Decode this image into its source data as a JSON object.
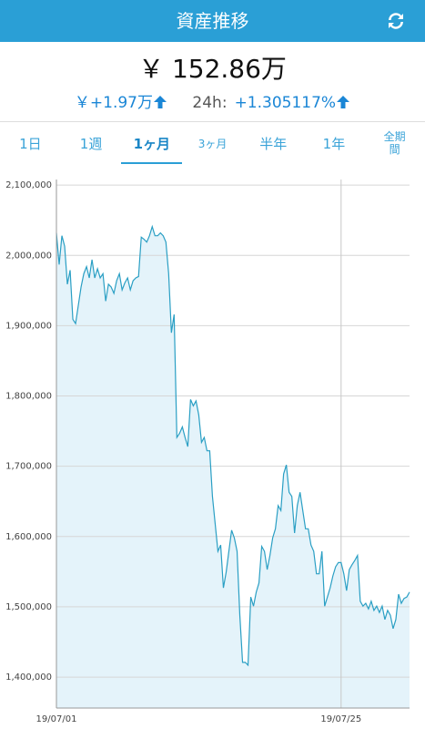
{
  "header": {
    "title": "資産推移"
  },
  "summary": {
    "total": "￥ 152.86万",
    "change": "￥+1.97万",
    "period_label": "24h:",
    "period_change": "+1.305117%"
  },
  "tabs": [
    "1日",
    "1週",
    "1ヶ月",
    "3ヶ月",
    "半年",
    "1年",
    "全期間"
  ],
  "active_tab": 2,
  "chart_data": {
    "type": "area",
    "color": "#2a9fc4",
    "fill": "#e4f3fa",
    "grid": true,
    "ylim": [
      1356000,
      2108000
    ],
    "yticks": [
      {
        "value": 1400000,
        "label": "1,400,000"
      },
      {
        "value": 1500000,
        "label": "1,500,000"
      },
      {
        "value": 1600000,
        "label": "1,600,000"
      },
      {
        "value": 1700000,
        "label": "1,700,000"
      },
      {
        "value": 1800000,
        "label": "1,800,000"
      },
      {
        "value": 1900000,
        "label": "1,900,000"
      },
      {
        "value": 2000000,
        "label": "2,000,000"
      },
      {
        "value": 2100000,
        "label": "2,100,000"
      }
    ],
    "categories": [
      "19/07/01",
      null,
      null,
      null,
      null,
      null,
      null,
      null,
      null,
      null,
      null,
      null,
      null,
      null,
      null,
      null,
      null,
      null,
      null,
      null,
      null,
      null,
      null,
      null,
      null,
      null,
      null,
      null,
      null,
      null,
      null,
      null,
      null,
      null,
      null,
      null,
      null,
      null,
      null,
      null,
      null,
      null,
      null,
      null,
      null,
      null,
      null,
      null,
      null,
      null,
      null,
      null,
      null,
      null,
      null,
      null,
      null,
      null,
      null,
      null,
      null,
      null,
      null,
      null,
      null,
      null,
      null,
      null,
      null,
      null,
      null,
      null,
      null,
      null,
      null,
      null,
      null,
      null,
      null,
      null,
      null,
      null,
      null,
      null,
      null,
      null,
      null,
      null,
      null,
      null,
      null,
      null,
      null,
      null,
      null,
      null,
      null,
      null,
      null,
      null,
      null,
      null,
      null,
      null,
      "19/07/25",
      null,
      null,
      null,
      null,
      null,
      null,
      null,
      null,
      null,
      null,
      null,
      null,
      null,
      null,
      null,
      null,
      null,
      null,
      null,
      null,
      null,
      null,
      null,
      null,
      null
    ],
    "values": [
      2032000,
      1987000,
      2028000,
      2013000,
      1959000,
      1979000,
      1909000,
      1903000,
      1929000,
      1955000,
      1974000,
      1984000,
      1968000,
      1994000,
      1968000,
      1981000,
      1968000,
      1974000,
      1935000,
      1959000,
      1955000,
      1946000,
      1964000,
      1974000,
      1951000,
      1961000,
      1968000,
      1951000,
      1964000,
      1968000,
      1970000,
      2026000,
      2023000,
      2019000,
      2028000,
      2041000,
      2028000,
      2028000,
      2032000,
      2028000,
      2019000,
      1974000,
      1890000,
      1916000,
      1741000,
      1747000,
      1756000,
      1741000,
      1728000,
      1795000,
      1786000,
      1793000,
      1773000,
      1734000,
      1741000,
      1722000,
      1722000,
      1657000,
      1618000,
      1579000,
      1588000,
      1527000,
      1549000,
      1579000,
      1609000,
      1598000,
      1579000,
      1488000,
      1421000,
      1421000,
      1417000,
      1514000,
      1501000,
      1521000,
      1534000,
      1586000,
      1579000,
      1553000,
      1573000,
      1598000,
      1611000,
      1644000,
      1637000,
      1689000,
      1702000,
      1663000,
      1657000,
      1605000,
      1644000,
      1663000,
      1637000,
      1611000,
      1611000,
      1588000,
      1579000,
      1547000,
      1547000,
      1579000,
      1501000,
      1514000,
      1527000,
      1544000,
      1557000,
      1563000,
      1563000,
      1547000,
      1523000,
      1553000,
      1560000,
      1566000,
      1573000,
      1508000,
      1501000,
      1505000,
      1497000,
      1508000,
      1495000,
      1501000,
      1492000,
      1501000,
      1482000,
      1495000,
      1488000,
      1469000,
      1482000,
      1518000,
      1505000,
      1512000,
      1514000,
      1521000
    ]
  }
}
